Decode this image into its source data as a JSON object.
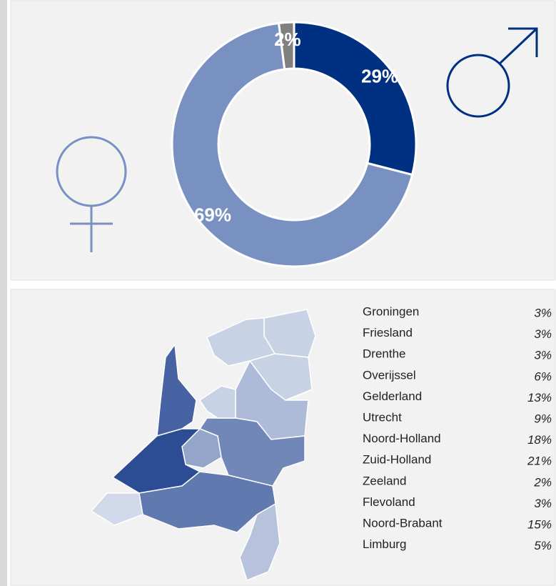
{
  "chart_data": [
    {
      "type": "pie",
      "values": [
        29,
        69,
        2
      ],
      "value_labels": [
        "29%",
        "69%",
        "2%"
      ],
      "colors": [
        "#003082",
        "#7891c0",
        "#808080"
      ]
    },
    {
      "type": "map",
      "categories": [
        "Groningen",
        "Friesland",
        "Drenthe",
        "Overijssel",
        "Gelderland",
        "Utrecht",
        "Noord-Holland",
        "Zuid-Holland",
        "Zeeland",
        "Flevoland",
        "Noord-Brabant",
        "Limburg"
      ],
      "values": [
        3,
        3,
        3,
        6,
        13,
        9,
        18,
        21,
        2,
        3,
        15,
        5
      ],
      "value_labels": [
        "3%",
        "3%",
        "3%",
        "6%",
        "13%",
        "9%",
        "18%",
        "21%",
        "2%",
        "3%",
        "15%",
        "5%"
      ]
    }
  ]
}
